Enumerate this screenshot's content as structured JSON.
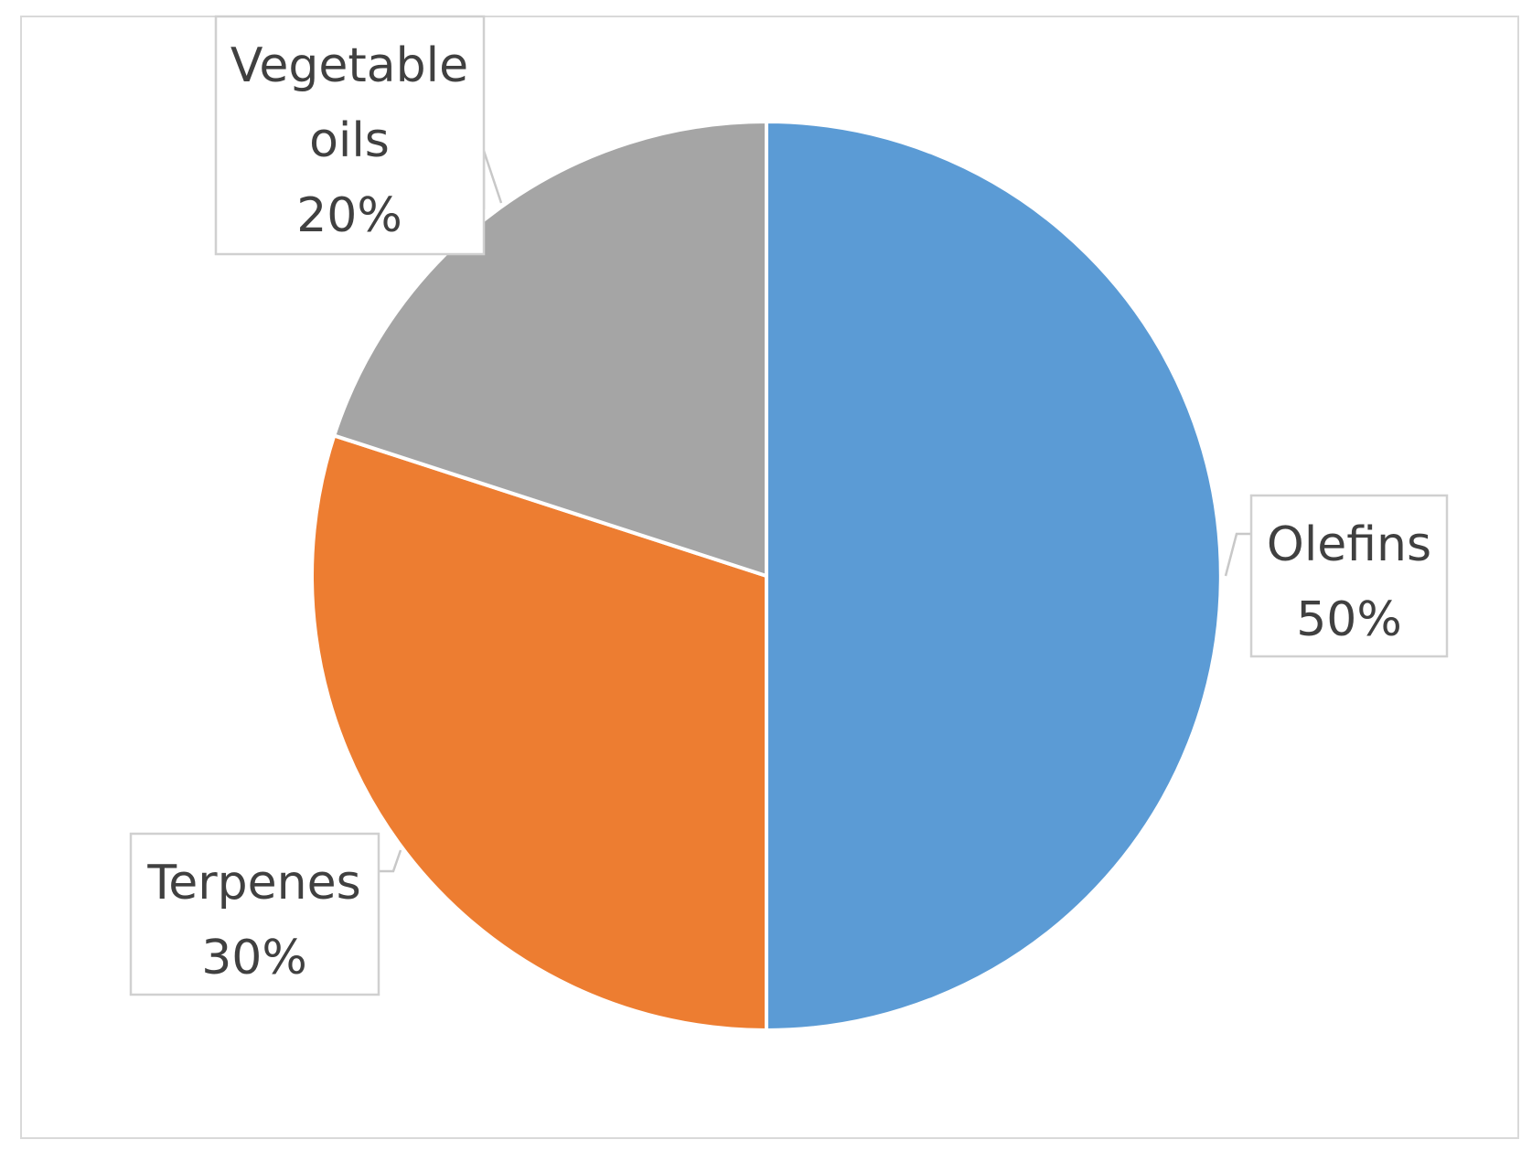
{
  "chart_data": {
    "type": "pie",
    "title": "",
    "slices": [
      {
        "name": "Olefins",
        "value": 50,
        "value_label": "50%",
        "color": "#5B9BD5"
      },
      {
        "name": "Terpenes",
        "value": 30,
        "value_label": "30%",
        "color": "#ED7D31"
      },
      {
        "name": "Vegetable oils",
        "value": 20,
        "value_label": "20%",
        "color": "#A5A5A5"
      }
    ],
    "start_angle": "12 o'clock",
    "direction": "clockwise",
    "data_labels": "outside with callouts",
    "legend": "none"
  }
}
